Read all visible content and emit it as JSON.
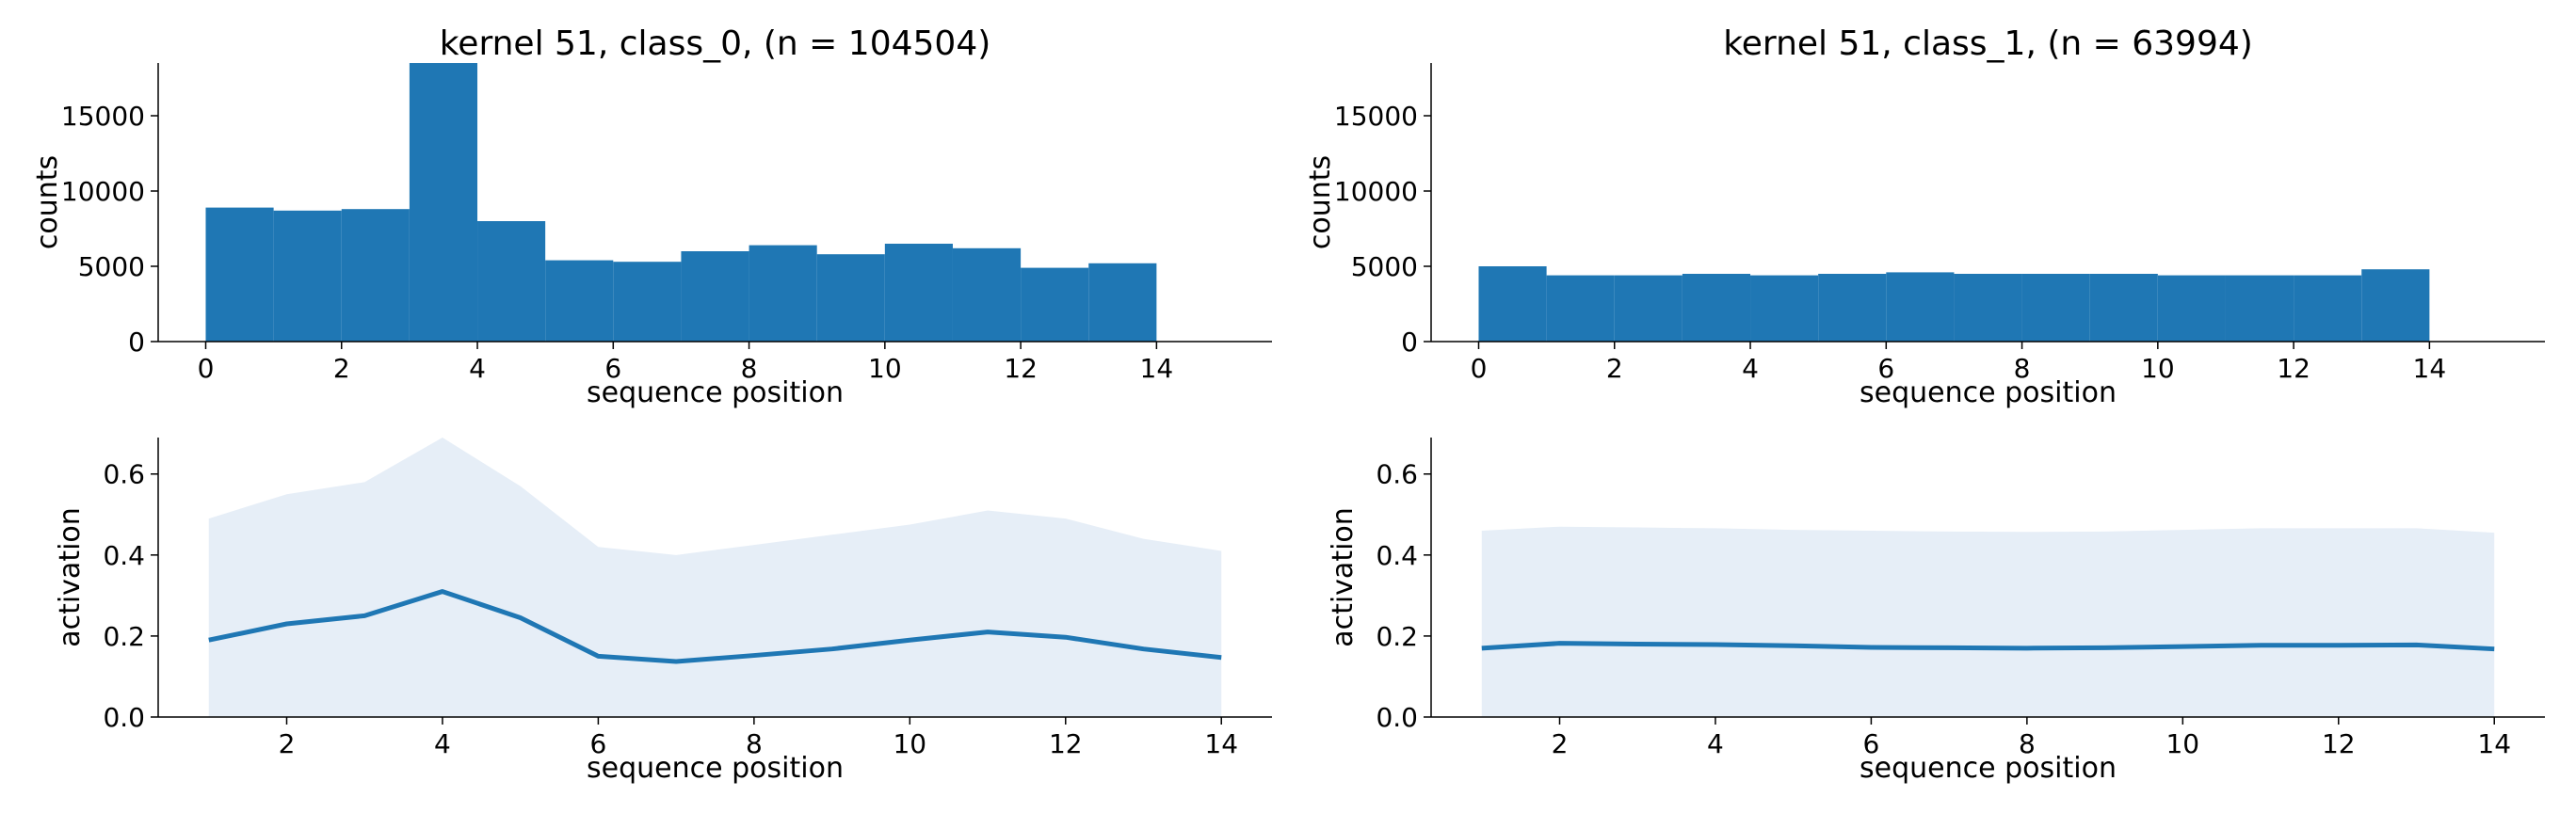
{
  "chart_data": [
    {
      "type": "bar",
      "title": "kernel 51, class_0, (n = 104504)",
      "xlabel": "sequence position",
      "ylabel": "counts",
      "xlim": [
        -0.7,
        15.7
      ],
      "ylim": [
        0,
        18500
      ],
      "xticks": [
        0,
        2,
        4,
        6,
        8,
        10,
        12,
        14
      ],
      "yticks": [
        0,
        5000,
        10000,
        15000
      ],
      "bin_edges": [
        0,
        1,
        2,
        3,
        4,
        5,
        6,
        7,
        8,
        9,
        10,
        11,
        12,
        13,
        14
      ],
      "values": [
        8900,
        8700,
        8800,
        18500,
        8000,
        5400,
        5300,
        6000,
        6400,
        5800,
        6500,
        6200,
        4900,
        5200
      ],
      "color": "#1f77b4",
      "grid": false
    },
    {
      "type": "bar",
      "title": "kernel 51, class_1, (n = 63994)",
      "xlabel": "sequence position",
      "ylabel": "counts",
      "xlim": [
        -0.7,
        15.7
      ],
      "ylim": [
        0,
        18500
      ],
      "xticks": [
        0,
        2,
        4,
        6,
        8,
        10,
        12,
        14
      ],
      "yticks": [
        0,
        5000,
        10000,
        15000
      ],
      "bin_edges": [
        0,
        1,
        2,
        3,
        4,
        5,
        6,
        7,
        8,
        9,
        10,
        11,
        12,
        13,
        14
      ],
      "values": [
        5000,
        4400,
        4400,
        4500,
        4400,
        4500,
        4600,
        4500,
        4500,
        4500,
        4400,
        4400,
        4400,
        4800
      ],
      "color": "#1f77b4",
      "grid": false
    },
    {
      "type": "line",
      "title": "",
      "xlabel": "sequence position",
      "ylabel": "activation",
      "xlim": [
        0.35,
        14.65
      ],
      "ylim": [
        0,
        0.69
      ],
      "xticks": [
        2,
        4,
        6,
        8,
        10,
        12,
        14
      ],
      "yticks": [
        0.0,
        0.2,
        0.4,
        0.6
      ],
      "ytick_labels": [
        "0.0",
        "0.2",
        "0.4",
        "0.6"
      ],
      "x": [
        1,
        2,
        3,
        4,
        5,
        6,
        7,
        8,
        9,
        10,
        11,
        12,
        13,
        14
      ],
      "y": [
        0.19,
        0.23,
        0.25,
        0.31,
        0.245,
        0.15,
        0.137,
        0.152,
        0.168,
        0.19,
        0.21,
        0.197,
        0.168,
        0.147
      ],
      "band_upper": [
        0.49,
        0.55,
        0.58,
        0.69,
        0.57,
        0.42,
        0.4,
        0.425,
        0.45,
        0.475,
        0.51,
        0.49,
        0.44,
        0.41
      ],
      "band_lower": [
        0,
        0,
        0,
        0,
        0,
        0,
        0,
        0,
        0,
        0,
        0,
        0,
        0,
        0
      ],
      "line_color": "#1f77b4",
      "band_color": "#e6eef7",
      "grid": false
    },
    {
      "type": "line",
      "title": "",
      "xlabel": "sequence position",
      "ylabel": "activation",
      "xlim": [
        0.35,
        14.65
      ],
      "ylim": [
        0,
        0.69
      ],
      "xticks": [
        2,
        4,
        6,
        8,
        10,
        12,
        14
      ],
      "yticks": [
        0.0,
        0.2,
        0.4,
        0.6
      ],
      "ytick_labels": [
        "0.0",
        "0.2",
        "0.4",
        "0.6"
      ],
      "x": [
        1,
        2,
        3,
        4,
        5,
        6,
        7,
        8,
        9,
        10,
        11,
        12,
        13,
        14
      ],
      "y": [
        0.17,
        0.182,
        0.18,
        0.179,
        0.176,
        0.172,
        0.171,
        0.17,
        0.171,
        0.174,
        0.177,
        0.177,
        0.178,
        0.168
      ],
      "band_upper": [
        0.46,
        0.47,
        0.468,
        0.466,
        0.462,
        0.46,
        0.458,
        0.457,
        0.458,
        0.462,
        0.466,
        0.466,
        0.466,
        0.455
      ],
      "band_lower": [
        0,
        0,
        0,
        0,
        0,
        0,
        0,
        0,
        0,
        0,
        0,
        0,
        0,
        0
      ],
      "line_color": "#1f77b4",
      "band_color": "#e6eef7",
      "grid": false
    }
  ]
}
